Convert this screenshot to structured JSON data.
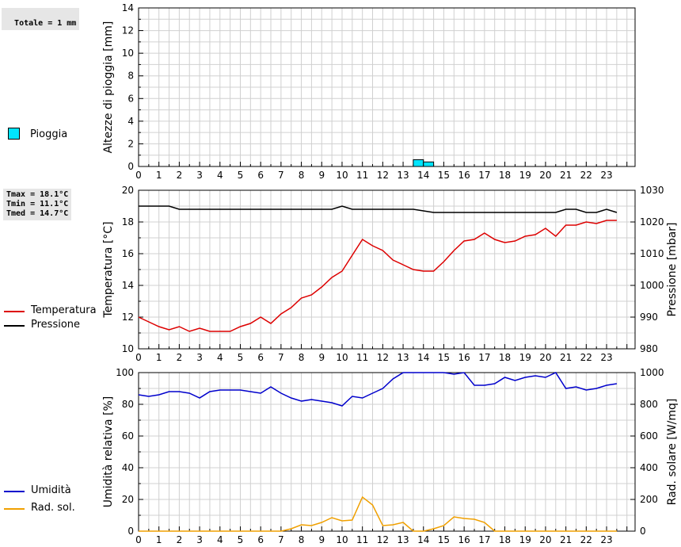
{
  "stats": {
    "rain_total": "Totale = 1 mm",
    "tmax": "Tmax = 18.1°C",
    "tmin": "Tmin = 11.1°C",
    "tmed": "Tmed = 14.7°C"
  },
  "legend": {
    "rain": "Pioggia",
    "temperature": "Temperatura",
    "pressure": "Pressione",
    "humidity": "Umidità",
    "radiation": "Rad. sol."
  },
  "colors": {
    "rain": "#00e5ff",
    "temperature": "#dd0000",
    "pressure": "#000000",
    "humidity": "#0000cc",
    "radiation": "#f0a000",
    "grid": "#d0d0d0"
  },
  "chart_data": [
    {
      "type": "bar",
      "ylabel": "Altezze di pioggia [mm]",
      "ylim": [
        0,
        14
      ],
      "yticks": [
        0,
        2,
        4,
        6,
        8,
        10,
        12,
        14
      ],
      "xticks": [
        "0",
        "1",
        "2",
        "3",
        "4",
        "5",
        "6",
        "7",
        "8",
        "9",
        "10",
        "11",
        "12",
        "13",
        "14",
        "15",
        "16",
        "17",
        "18",
        "19",
        "20",
        "21",
        "22",
        "23"
      ],
      "grid": true,
      "series": [
        {
          "name": "Pioggia",
          "x": [
            13.5,
            14.0
          ],
          "width": 0.5,
          "values": [
            0.6,
            0.4
          ]
        }
      ]
    },
    {
      "type": "line",
      "ylabel": "Temperatura [°C]",
      "ylabel_right": "Pressione [mbar]",
      "ylim": [
        10,
        20
      ],
      "ylim_right": [
        980,
        1030
      ],
      "yticks": [
        10,
        12,
        14,
        16,
        18,
        20
      ],
      "yticks_right": [
        980,
        990,
        1000,
        1010,
        1020,
        1030
      ],
      "xticks": [
        "0",
        "1",
        "2",
        "3",
        "4",
        "5",
        "6",
        "7",
        "8",
        "9",
        "10",
        "11",
        "12",
        "13",
        "14",
        "15",
        "16",
        "17",
        "18",
        "19",
        "20",
        "21",
        "22",
        "23"
      ],
      "grid": true,
      "x": [
        0,
        0.5,
        1,
        1.5,
        2,
        2.5,
        3,
        3.5,
        4,
        4.5,
        5,
        5.5,
        6,
        6.5,
        7,
        7.5,
        8,
        8.5,
        9,
        9.5,
        10,
        10.5,
        11,
        11.5,
        12,
        12.5,
        13,
        13.5,
        14,
        14.5,
        15,
        15.5,
        16,
        16.5,
        17,
        17.5,
        18,
        18.5,
        19,
        19.5,
        20,
        20.5,
        21,
        21.5,
        22,
        22.5,
        23,
        23.5
      ],
      "series": [
        {
          "name": "Temperatura",
          "axis": "left",
          "values": [
            12.0,
            11.7,
            11.4,
            11.2,
            11.4,
            11.1,
            11.3,
            11.1,
            11.1,
            11.1,
            11.4,
            11.6,
            12.0,
            11.6,
            12.2,
            12.6,
            13.2,
            13.4,
            13.9,
            14.5,
            14.9,
            15.9,
            16.9,
            16.5,
            16.2,
            15.6,
            15.3,
            15.0,
            14.9,
            14.9,
            15.5,
            16.2,
            16.8,
            16.9,
            17.3,
            16.9,
            16.7,
            16.8,
            17.1,
            17.2,
            17.6,
            17.1,
            17.8,
            17.8,
            18.0,
            17.9,
            18.1,
            18.1
          ]
        },
        {
          "name": "Pressione",
          "axis": "right",
          "x": [
            0,
            1.5,
            2,
            9.5,
            10,
            10.5,
            13,
            13.5,
            14.5,
            20.5,
            21,
            21.5,
            22,
            22.5,
            23,
            23.5
          ],
          "values": [
            1025,
            1025,
            1024,
            1024,
            1025,
            1024,
            1024,
            1024,
            1023,
            1023,
            1024,
            1024,
            1023,
            1023,
            1024,
            1023
          ]
        }
      ]
    },
    {
      "type": "line",
      "ylabel": "Umidità relativa [%]",
      "ylabel_right": "Rad. solare [W/mq]",
      "ylim": [
        0,
        100
      ],
      "ylim_right": [
        0,
        1000
      ],
      "yticks": [
        0,
        20,
        40,
        60,
        80,
        100
      ],
      "yticks_right": [
        0,
        200,
        400,
        600,
        800,
        1000
      ],
      "xticks": [
        "0",
        "1",
        "2",
        "3",
        "4",
        "5",
        "6",
        "7",
        "8",
        "9",
        "10",
        "11",
        "12",
        "13",
        "14",
        "15",
        "16",
        "17",
        "18",
        "19",
        "20",
        "21",
        "22",
        "23"
      ],
      "grid": true,
      "x": [
        0,
        0.5,
        1,
        1.5,
        2,
        2.5,
        3,
        3.5,
        4,
        4.5,
        5,
        5.5,
        6,
        6.5,
        7,
        7.5,
        8,
        8.5,
        9,
        9.5,
        10,
        10.5,
        11,
        11.5,
        12,
        12.5,
        13,
        13.5,
        14,
        14.5,
        15,
        15.5,
        16,
        16.5,
        17,
        17.5,
        18,
        18.5,
        19,
        19.5,
        20,
        20.5,
        21,
        21.5,
        22,
        22.5,
        23,
        23.5
      ],
      "series": [
        {
          "name": "Umidità",
          "axis": "left",
          "values": [
            86,
            85,
            86,
            88,
            88,
            87,
            84,
            88,
            89,
            89,
            89,
            88,
            87,
            91,
            87,
            84,
            82,
            83,
            82,
            81,
            79,
            85,
            84,
            87,
            90,
            96,
            100,
            100,
            100,
            100,
            100,
            99,
            100,
            92,
            92,
            93,
            97,
            95,
            97,
            98,
            97,
            100,
            90,
            91,
            89,
            90,
            92,
            93
          ]
        },
        {
          "name": "Rad. sol.",
          "axis": "right",
          "values": [
            0,
            0,
            0,
            0,
            0,
            0,
            0,
            0,
            0,
            0,
            0,
            0,
            0,
            0,
            0,
            15,
            40,
            35,
            55,
            85,
            65,
            70,
            215,
            165,
            35,
            40,
            55,
            0,
            0,
            15,
            35,
            90,
            80,
            75,
            55,
            0,
            0,
            0,
            0,
            0,
            0,
            0,
            0,
            0,
            0,
            0,
            0,
            0
          ]
        }
      ]
    }
  ]
}
